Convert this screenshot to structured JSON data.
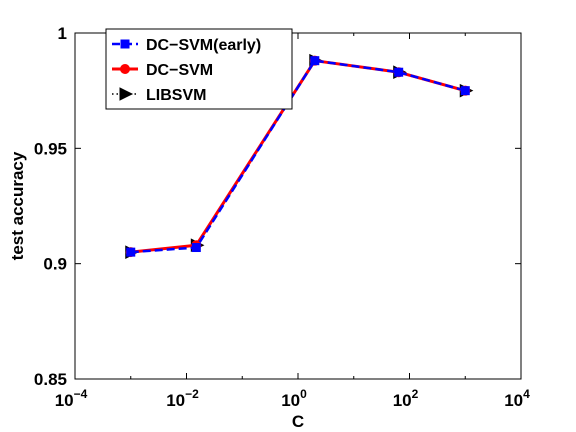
{
  "chart_data": {
    "type": "line",
    "xscale": "log",
    "xlabel": "C",
    "ylabel": "test accuracy",
    "xlim": [
      0.0001,
      10000
    ],
    "ylim": [
      0.85,
      1.0
    ],
    "xticks": [
      0.0001,
      0.01,
      1,
      100,
      10000
    ],
    "xtick_labels": [
      {
        "base": "10",
        "exp": "−4"
      },
      {
        "base": "10",
        "exp": "−2"
      },
      {
        "base": "10",
        "exp": "0"
      },
      {
        "base": "10",
        "exp": "2"
      },
      {
        "base": "10",
        "exp": "4"
      }
    ],
    "yticks": [
      0.85,
      0.9,
      0.95,
      1.0
    ],
    "ytick_labels": [
      "0.85",
      "0.9",
      "0.95",
      "1"
    ],
    "grid": false,
    "legend_position": "top-left",
    "series": [
      {
        "name": "DC−SVM(early)",
        "color": "#0000ff",
        "line": "dashed",
        "marker": "square",
        "x": [
          0.001,
          0.015,
          2,
          64,
          1000
        ],
        "y": [
          0.905,
          0.907,
          0.988,
          0.983,
          0.975
        ]
      },
      {
        "name": "DC−SVM",
        "color": "#ff0000",
        "line": "solid",
        "marker": "circle",
        "x": [
          0.001,
          0.015,
          2,
          64,
          1000
        ],
        "y": [
          0.905,
          0.908,
          0.988,
          0.983,
          0.975
        ]
      },
      {
        "name": "LIBSVM",
        "color": "#000000",
        "line": "dotted",
        "marker": "triangle-right",
        "x": [
          0.001,
          0.015,
          2,
          64,
          1000
        ],
        "y": [
          0.905,
          0.908,
          0.988,
          0.983,
          0.975
        ]
      }
    ]
  }
}
